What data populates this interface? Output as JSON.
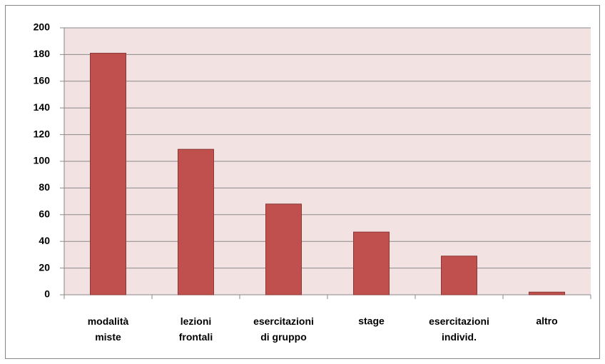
{
  "chart_data": {
    "type": "bar",
    "categories": [
      "modalità miste",
      "lezioni frontali",
      "esercitazioni di gruppo",
      "stage",
      "esercitazioni individ.",
      "altro"
    ],
    "values": [
      181,
      109,
      68,
      47,
      29,
      2
    ],
    "color": "#c0504d",
    "ylim": [
      0,
      200
    ],
    "yticks": [
      0,
      20,
      40,
      60,
      80,
      100,
      120,
      140,
      160,
      180,
      200
    ],
    "grid": true
  }
}
